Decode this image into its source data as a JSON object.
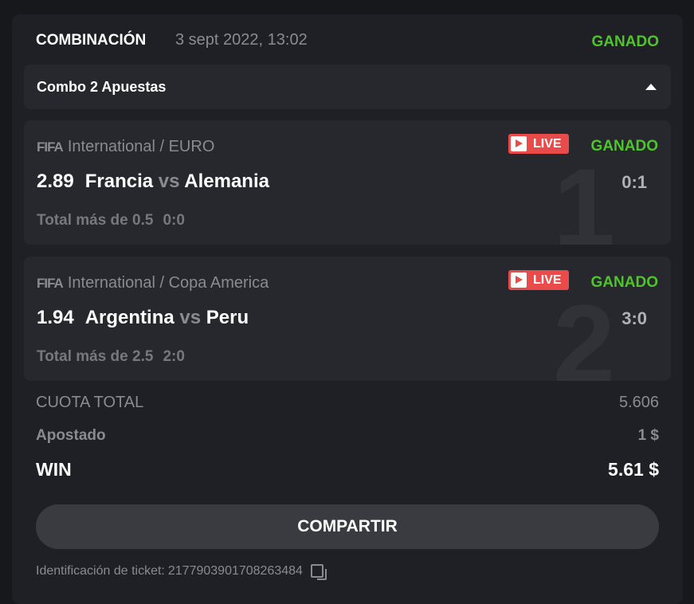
{
  "header": {
    "title": "COMBINACIÓN",
    "date": "3 sept 2022, 13:02",
    "status": "GANADO"
  },
  "combo": {
    "label": "Combo 2 Apuestas"
  },
  "bets": [
    {
      "brand": "FIFA",
      "league": "International / EURO",
      "live": "LIVE",
      "status": "GANADO",
      "odd": "2.89",
      "home": "Francia",
      "vs": "vs",
      "away": "Alemania",
      "score": "0:1",
      "market": "Total más de 0.5",
      "market_score": "0:0",
      "index": "1"
    },
    {
      "brand": "FIFA",
      "league": "International / Copa America",
      "live": "LIVE",
      "status": "GANADO",
      "odd": "1.94",
      "home": "Argentina",
      "vs": "vs",
      "away": "Peru",
      "score": "3:0",
      "market": "Total más de 2.5",
      "market_score": "2:0",
      "index": "2"
    }
  ],
  "summary": {
    "total_odds_label": "CUOTA TOTAL",
    "total_odds": "5.606",
    "staked_label": "Apostado",
    "staked": "1 $",
    "win_label": "WIN",
    "win": "5.61 $"
  },
  "share_label": "COMPARTIR",
  "ticket": {
    "label": "Identificación de ticket:",
    "id": "2177903901708263484"
  },
  "colors": {
    "won": "#4fc42b",
    "live": "#e94b4b",
    "background": "#1f2025"
  }
}
